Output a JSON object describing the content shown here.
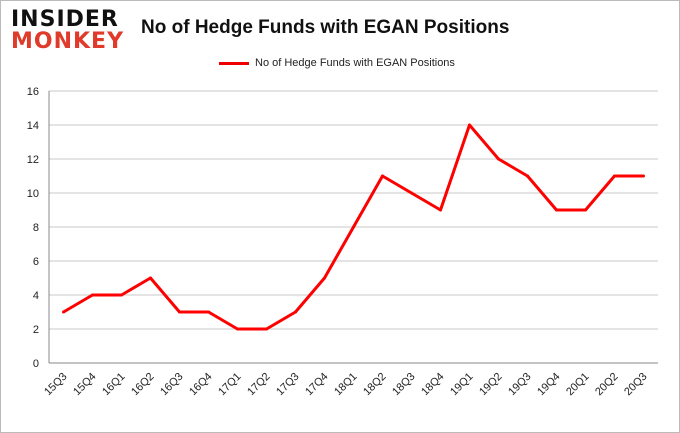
{
  "logo": {
    "line1": "INSIDER",
    "line2": "MONKEY"
  },
  "chart_data": {
    "type": "line",
    "title": "No of Hedge Funds with EGAN Positions",
    "legend": "No of Hedge Funds with EGAN Positions",
    "legend_position": "top",
    "categories": [
      "15Q3",
      "15Q4",
      "16Q1",
      "16Q2",
      "16Q3",
      "16Q4",
      "17Q1",
      "17Q2",
      "17Q3",
      "17Q4",
      "18Q1",
      "18Q2",
      "18Q3",
      "18Q4",
      "19Q1",
      "19Q2",
      "19Q3",
      "19Q4",
      "20Q1",
      "20Q2",
      "20Q3"
    ],
    "series": [
      {
        "name": "No of Hedge Funds with EGAN Positions",
        "values": [
          3,
          4,
          4,
          5,
          3,
          3,
          2,
          2,
          3,
          5,
          8,
          11,
          10,
          9,
          14,
          12,
          11,
          9,
          9,
          11,
          11
        ],
        "color": "#ff0000"
      }
    ],
    "ylim": [
      0,
      16
    ],
    "yticks": [
      0,
      2,
      4,
      6,
      8,
      10,
      12,
      14,
      16
    ],
    "grid": true,
    "xlabel": "",
    "ylabel": ""
  }
}
